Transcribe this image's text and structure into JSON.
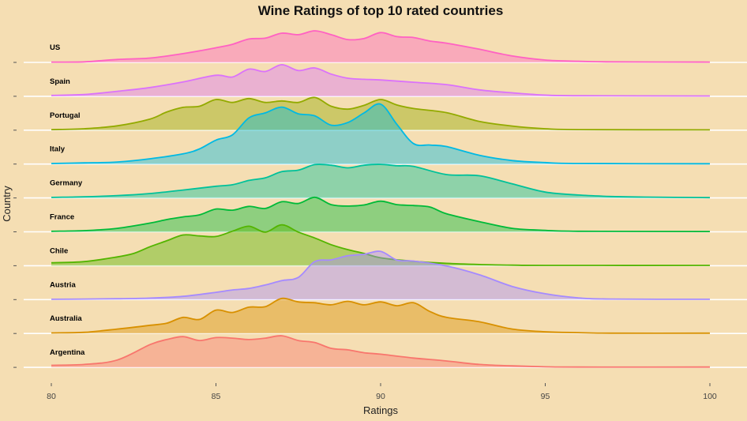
{
  "chart_data": {
    "type": "area",
    "subtype": "ridgeline-density",
    "title": "Wine Ratings of top 10 rated countries",
    "xlabel": "Ratings",
    "ylabel": "Country",
    "xlim": [
      80,
      100
    ],
    "xticks": [
      "80",
      "85",
      "90",
      "95",
      "100"
    ],
    "grid": "horizontal",
    "legend": "none",
    "background": "#f5deb3",
    "series": [
      {
        "name": "US",
        "color": "#ff61c3",
        "x": [
          80,
          81,
          82,
          83,
          84,
          85,
          85.5,
          86,
          86.5,
          87,
          87.5,
          88,
          88.5,
          89,
          89.5,
          90,
          90.5,
          91,
          91.5,
          92,
          93,
          94,
          95,
          96,
          97,
          100
        ],
        "density": [
          0.01,
          0.02,
          0.1,
          0.15,
          0.3,
          0.5,
          0.62,
          0.8,
          0.83,
          1.0,
          0.95,
          1.08,
          0.95,
          0.78,
          0.82,
          1.02,
          0.88,
          0.85,
          0.73,
          0.66,
          0.45,
          0.22,
          0.08,
          0.04,
          0.02,
          0.01
        ]
      },
      {
        "name": "Spain",
        "color": "#db72fb",
        "x": [
          80,
          81,
          82,
          83,
          84,
          85,
          85.5,
          86,
          86.5,
          87,
          87.5,
          88,
          88.5,
          89,
          89.5,
          90,
          91,
          92,
          93,
          94,
          95,
          96,
          100
        ],
        "density": [
          0.03,
          0.06,
          0.17,
          0.3,
          0.49,
          0.72,
          0.66,
          0.93,
          0.85,
          1.08,
          0.88,
          0.97,
          0.76,
          0.62,
          0.58,
          0.56,
          0.48,
          0.4,
          0.22,
          0.12,
          0.04,
          0.02,
          0.01
        ]
      },
      {
        "name": "Portugal",
        "color": "#93aa00",
        "x": [
          80,
          81,
          82,
          83,
          83.5,
          84,
          84.5,
          85,
          85.5,
          86,
          86.5,
          87,
          87.5,
          88,
          88.5,
          89,
          89.5,
          90,
          90.5,
          91,
          92,
          93,
          94,
          95,
          96,
          100
        ],
        "density": [
          0.02,
          0.05,
          0.15,
          0.38,
          0.62,
          0.78,
          0.82,
          1.05,
          0.95,
          1.08,
          0.95,
          1.0,
          0.95,
          1.12,
          0.82,
          0.72,
          0.85,
          1.05,
          0.86,
          0.74,
          0.6,
          0.3,
          0.14,
          0.05,
          0.02,
          0.01
        ]
      },
      {
        "name": "Italy",
        "color": "#00b9e3",
        "x": [
          80,
          81,
          82,
          83,
          84,
          84.5,
          85,
          85.5,
          86,
          86.5,
          87,
          87.5,
          88,
          88.5,
          89,
          89.5,
          90,
          90.5,
          91,
          91.5,
          92,
          93,
          94,
          95,
          96,
          100
        ],
        "density": [
          0.02,
          0.04,
          0.07,
          0.18,
          0.35,
          0.52,
          0.82,
          1.0,
          1.58,
          1.75,
          1.95,
          1.72,
          1.65,
          1.33,
          1.42,
          1.75,
          2.05,
          1.35,
          0.7,
          0.65,
          0.6,
          0.3,
          0.12,
          0.05,
          0.02,
          0.01
        ]
      },
      {
        "name": "Germany",
        "color": "#00c19a",
        "x": [
          80,
          81,
          82,
          83,
          84,
          85,
          85.5,
          86,
          86.5,
          87,
          87.5,
          88,
          88.5,
          89,
          89.5,
          90,
          90.5,
          91,
          92,
          93,
          94,
          95,
          96,
          97,
          98,
          100
        ],
        "density": [
          0.02,
          0.04,
          0.08,
          0.15,
          0.27,
          0.4,
          0.45,
          0.6,
          0.69,
          0.9,
          0.95,
          1.14,
          1.12,
          1.03,
          1.12,
          1.15,
          1.1,
          1.08,
          0.8,
          0.76,
          0.48,
          0.2,
          0.1,
          0.05,
          0.03,
          0.01
        ]
      },
      {
        "name": "France",
        "color": "#00ba38",
        "x": [
          80,
          81,
          82,
          83,
          83.5,
          84,
          84.5,
          85,
          85.5,
          86,
          86.5,
          87,
          87.5,
          88,
          88.5,
          89,
          89.5,
          90,
          90.5,
          91,
          91.5,
          92,
          93,
          94,
          95,
          96,
          100
        ],
        "density": [
          0.02,
          0.04,
          0.12,
          0.3,
          0.42,
          0.51,
          0.58,
          0.78,
          0.74,
          0.87,
          0.8,
          1.03,
          0.97,
          1.18,
          0.93,
          0.88,
          0.92,
          1.05,
          0.93,
          0.9,
          0.85,
          0.62,
          0.35,
          0.12,
          0.05,
          0.02,
          0.01
        ]
      },
      {
        "name": "Chile",
        "color": "#53b400",
        "x": [
          80,
          81,
          82,
          82.5,
          83,
          83.5,
          84,
          84.5,
          85,
          85.5,
          86,
          86.5,
          87,
          87.5,
          88,
          88.5,
          89,
          89.5,
          90,
          91,
          92,
          93,
          94,
          95,
          100
        ],
        "density": [
          0.1,
          0.14,
          0.3,
          0.42,
          0.65,
          0.85,
          1.05,
          1.02,
          1.0,
          1.18,
          1.35,
          1.15,
          1.4,
          1.15,
          0.95,
          0.72,
          0.55,
          0.42,
          0.27,
          0.15,
          0.08,
          0.04,
          0.02,
          0.01,
          0.01
        ]
      },
      {
        "name": "Austria",
        "color": "#a58aff",
        "x": [
          80,
          81,
          82,
          83,
          84,
          85,
          85.5,
          86,
          86.5,
          87,
          87.5,
          88,
          88.5,
          89,
          89.5,
          90,
          90.5,
          91,
          92,
          93,
          94,
          95,
          96,
          97,
          100
        ],
        "density": [
          0.01,
          0.02,
          0.03,
          0.05,
          0.11,
          0.25,
          0.33,
          0.38,
          0.5,
          0.65,
          0.76,
          1.3,
          1.36,
          1.5,
          1.55,
          1.65,
          1.35,
          1.32,
          1.15,
          0.85,
          0.45,
          0.2,
          0.06,
          0.02,
          0.01
        ]
      },
      {
        "name": "Australia",
        "color": "#d89000",
        "x": [
          80,
          81,
          82,
          83,
          83.5,
          84,
          84.5,
          85,
          85.5,
          86,
          86.5,
          87,
          87.5,
          88,
          88.5,
          89,
          89.5,
          90,
          90.5,
          91,
          91.5,
          92,
          93,
          94,
          95,
          96,
          97,
          100
        ],
        "density": [
          0.02,
          0.04,
          0.15,
          0.28,
          0.35,
          0.55,
          0.48,
          0.8,
          0.72,
          0.9,
          0.92,
          1.2,
          1.08,
          1.05,
          0.98,
          1.1,
          0.98,
          1.08,
          0.95,
          1.05,
          0.75,
          0.55,
          0.4,
          0.15,
          0.06,
          0.03,
          0.01,
          0.01
        ]
      },
      {
        "name": "Argentina",
        "color": "#f8766d",
        "x": [
          80,
          81,
          82,
          83,
          83.5,
          84,
          84.5,
          85,
          85.5,
          86,
          86.5,
          87,
          87.5,
          88,
          88.5,
          89,
          89.5,
          90,
          91,
          92,
          93,
          94,
          95,
          96,
          100
        ],
        "density": [
          0.07,
          0.1,
          0.25,
          0.78,
          0.95,
          1.05,
          0.92,
          1.02,
          1.0,
          0.95,
          1.0,
          1.08,
          0.92,
          0.85,
          0.65,
          0.6,
          0.5,
          0.45,
          0.32,
          0.22,
          0.1,
          0.05,
          0.02,
          0.01,
          0.01
        ]
      }
    ]
  }
}
